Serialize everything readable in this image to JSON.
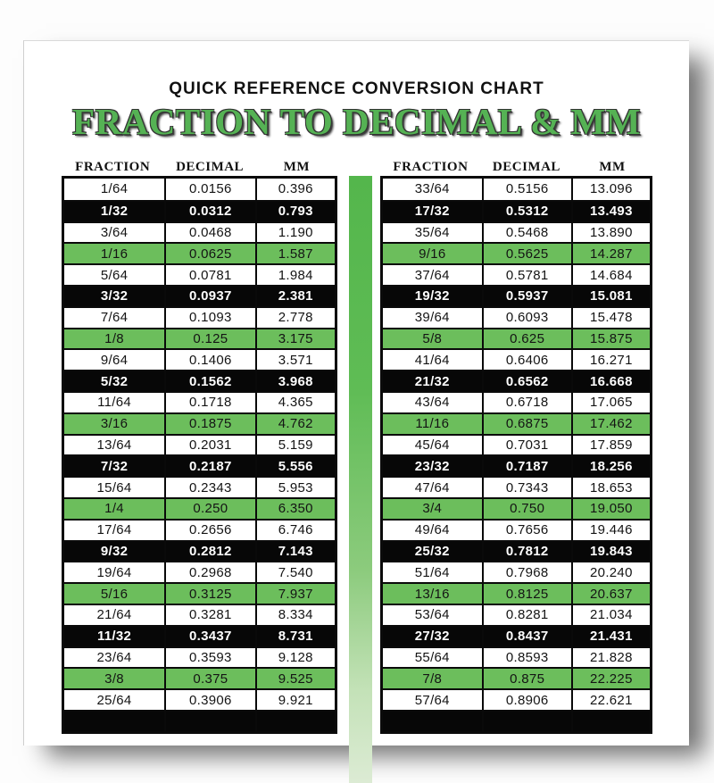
{
  "document": {
    "title": "QUICK REFERENCE CONVERSION CHART",
    "heading": "FRACTION TO DECIMAL & MM"
  },
  "colors": {
    "heading_green": "#55b254",
    "row_green": "#6cbe5c",
    "row_black": "#070707",
    "divider_green_top": "#54b64c",
    "divider_green_bottom": "#dcebd4",
    "border_black": "#0a0a0a"
  },
  "columns": [
    "FRACTION",
    "DECIMAL",
    "MM"
  ],
  "tables": [
    {
      "rows": [
        {
          "fraction": "1/64",
          "decimal": "0.0156",
          "mm": "0.396",
          "variant": "white"
        },
        {
          "fraction": "1/32",
          "decimal": "0.0312",
          "mm": "0.793",
          "variant": "black"
        },
        {
          "fraction": "3/64",
          "decimal": "0.0468",
          "mm": "1.190",
          "variant": "white"
        },
        {
          "fraction": "1/16",
          "decimal": "0.0625",
          "mm": "1.587",
          "variant": "green"
        },
        {
          "fraction": "5/64",
          "decimal": "0.0781",
          "mm": "1.984",
          "variant": "white"
        },
        {
          "fraction": "3/32",
          "decimal": "0.0937",
          "mm": "2.381",
          "variant": "black"
        },
        {
          "fraction": "7/64",
          "decimal": "0.1093",
          "mm": "2.778",
          "variant": "white"
        },
        {
          "fraction": "1/8",
          "decimal": "0.125",
          "mm": "3.175",
          "variant": "green"
        },
        {
          "fraction": "9/64",
          "decimal": "0.1406",
          "mm": "3.571",
          "variant": "white"
        },
        {
          "fraction": "5/32",
          "decimal": "0.1562",
          "mm": "3.968",
          "variant": "black"
        },
        {
          "fraction": "11/64",
          "decimal": "0.1718",
          "mm": "4.365",
          "variant": "white"
        },
        {
          "fraction": "3/16",
          "decimal": "0.1875",
          "mm": "4.762",
          "variant": "green"
        },
        {
          "fraction": "13/64",
          "decimal": "0.2031",
          "mm": "5.159",
          "variant": "white"
        },
        {
          "fraction": "7/32",
          "decimal": "0.2187",
          "mm": "5.556",
          "variant": "black"
        },
        {
          "fraction": "15/64",
          "decimal": "0.2343",
          "mm": "5.953",
          "variant": "white"
        },
        {
          "fraction": "1/4",
          "decimal": "0.250",
          "mm": "6.350",
          "variant": "green"
        },
        {
          "fraction": "17/64",
          "decimal": "0.2656",
          "mm": "6.746",
          "variant": "white"
        },
        {
          "fraction": "9/32",
          "decimal": "0.2812",
          "mm": "7.143",
          "variant": "black"
        },
        {
          "fraction": "19/64",
          "decimal": "0.2968",
          "mm": "7.540",
          "variant": "white"
        },
        {
          "fraction": "5/16",
          "decimal": "0.3125",
          "mm": "7.937",
          "variant": "green"
        },
        {
          "fraction": "21/64",
          "decimal": "0.3281",
          "mm": "8.334",
          "variant": "white"
        },
        {
          "fraction": "11/32",
          "decimal": "0.3437",
          "mm": "8.731",
          "variant": "black"
        },
        {
          "fraction": "23/64",
          "decimal": "0.3593",
          "mm": "9.128",
          "variant": "white"
        },
        {
          "fraction": "3/8",
          "decimal": "0.375",
          "mm": "9.525",
          "variant": "green"
        },
        {
          "fraction": "25/64",
          "decimal": "0.3906",
          "mm": "9.921",
          "variant": "white"
        },
        {
          "fraction": "",
          "decimal": "",
          "mm": "",
          "variant": "black"
        }
      ]
    },
    {
      "rows": [
        {
          "fraction": "33/64",
          "decimal": "0.5156",
          "mm": "13.096",
          "variant": "white"
        },
        {
          "fraction": "17/32",
          "decimal": "0.5312",
          "mm": "13.493",
          "variant": "black"
        },
        {
          "fraction": "35/64",
          "decimal": "0.5468",
          "mm": "13.890",
          "variant": "white"
        },
        {
          "fraction": "9/16",
          "decimal": "0.5625",
          "mm": "14.287",
          "variant": "green"
        },
        {
          "fraction": "37/64",
          "decimal": "0.5781",
          "mm": "14.684",
          "variant": "white"
        },
        {
          "fraction": "19/32",
          "decimal": "0.5937",
          "mm": "15.081",
          "variant": "black"
        },
        {
          "fraction": "39/64",
          "decimal": "0.6093",
          "mm": "15.478",
          "variant": "white"
        },
        {
          "fraction": "5/8",
          "decimal": "0.625",
          "mm": "15.875",
          "variant": "green"
        },
        {
          "fraction": "41/64",
          "decimal": "0.6406",
          "mm": "16.271",
          "variant": "white"
        },
        {
          "fraction": "21/32",
          "decimal": "0.6562",
          "mm": "16.668",
          "variant": "black"
        },
        {
          "fraction": "43/64",
          "decimal": "0.6718",
          "mm": "17.065",
          "variant": "white"
        },
        {
          "fraction": "11/16",
          "decimal": "0.6875",
          "mm": "17.462",
          "variant": "green"
        },
        {
          "fraction": "45/64",
          "decimal": "0.7031",
          "mm": "17.859",
          "variant": "white"
        },
        {
          "fraction": "23/32",
          "decimal": "0.7187",
          "mm": "18.256",
          "variant": "black"
        },
        {
          "fraction": "47/64",
          "decimal": "0.7343",
          "mm": "18.653",
          "variant": "white"
        },
        {
          "fraction": "3/4",
          "decimal": "0.750",
          "mm": "19.050",
          "variant": "green"
        },
        {
          "fraction": "49/64",
          "decimal": "0.7656",
          "mm": "19.446",
          "variant": "white"
        },
        {
          "fraction": "25/32",
          "decimal": "0.7812",
          "mm": "19.843",
          "variant": "black"
        },
        {
          "fraction": "51/64",
          "decimal": "0.7968",
          "mm": "20.240",
          "variant": "white"
        },
        {
          "fraction": "13/16",
          "decimal": "0.8125",
          "mm": "20.637",
          "variant": "green"
        },
        {
          "fraction": "53/64",
          "decimal": "0.8281",
          "mm": "21.034",
          "variant": "white"
        },
        {
          "fraction": "27/32",
          "decimal": "0.8437",
          "mm": "21.431",
          "variant": "black"
        },
        {
          "fraction": "55/64",
          "decimal": "0.8593",
          "mm": "21.828",
          "variant": "white"
        },
        {
          "fraction": "7/8",
          "decimal": "0.875",
          "mm": "22.225",
          "variant": "green"
        },
        {
          "fraction": "57/64",
          "decimal": "0.8906",
          "mm": "22.621",
          "variant": "white"
        },
        {
          "fraction": "",
          "decimal": "",
          "mm": "",
          "variant": "black"
        }
      ]
    }
  ]
}
